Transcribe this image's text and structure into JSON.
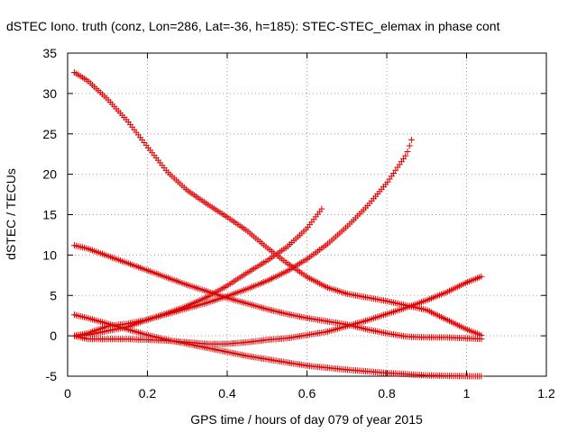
{
  "chart_data": {
    "type": "scatter",
    "title": "dSTEC Iono. truth (conz, Lon=286, Lat=-36, h=185): STEC-STEC_elemax in phase cont",
    "xlabel": "GPS time / hours of day 079 of year 2015",
    "ylabel": "dSTEC  / TECUs",
    "xlim": [
      0,
      1.2
    ],
    "ylim": [
      -5,
      35
    ],
    "x_ticks": [
      "0",
      "0.2",
      "0.4",
      "0.6",
      "0.8",
      "1",
      "1.2"
    ],
    "y_ticks": [
      "-5",
      "0",
      "5",
      "10",
      "15",
      "20",
      "25",
      "30",
      "35"
    ],
    "grid": "dotted",
    "marker": "+",
    "color": "#e00000",
    "series": [
      {
        "points": [
          [
            0.017,
            32.6
          ],
          [
            0.05,
            31.6
          ],
          [
            0.1,
            29.3
          ],
          [
            0.15,
            26.6
          ],
          [
            0.2,
            23.4
          ],
          [
            0.25,
            20.3
          ],
          [
            0.3,
            18.0
          ],
          [
            0.35,
            16.3
          ],
          [
            0.4,
            14.7
          ],
          [
            0.45,
            13.0
          ],
          [
            0.5,
            10.9
          ],
          [
            0.55,
            9.0
          ],
          [
            0.6,
            7.3
          ],
          [
            0.65,
            6.0
          ],
          [
            0.7,
            5.2
          ],
          [
            0.8,
            4.3
          ],
          [
            0.9,
            3.2
          ],
          [
            0.95,
            2.0
          ],
          [
            1.0,
            0.8
          ],
          [
            1.04,
            0.0
          ]
        ]
      },
      {
        "points": [
          [
            0.017,
            11.2
          ],
          [
            0.05,
            10.8
          ],
          [
            0.1,
            9.9
          ],
          [
            0.15,
            9.0
          ],
          [
            0.2,
            8.1
          ],
          [
            0.25,
            7.2
          ],
          [
            0.3,
            6.3
          ],
          [
            0.35,
            5.5
          ],
          [
            0.4,
            4.7
          ],
          [
            0.45,
            4.0
          ],
          [
            0.5,
            3.3
          ],
          [
            0.55,
            2.7
          ],
          [
            0.6,
            2.2
          ],
          [
            0.65,
            1.8
          ],
          [
            0.7,
            1.4
          ],
          [
            0.75,
            0.8
          ],
          [
            0.8,
            0.3
          ],
          [
            0.85,
            -0.1
          ],
          [
            0.9,
            -0.2
          ],
          [
            0.95,
            -0.2
          ],
          [
            1.0,
            -0.3
          ],
          [
            1.04,
            -0.4
          ]
        ]
      },
      {
        "points": [
          [
            0.017,
            2.6
          ],
          [
            0.05,
            2.2
          ],
          [
            0.1,
            1.5
          ],
          [
            0.15,
            0.8
          ],
          [
            0.2,
            0.1
          ],
          [
            0.25,
            -0.5
          ],
          [
            0.3,
            -1.0
          ],
          [
            0.35,
            -1.5
          ],
          [
            0.4,
            -2.0
          ],
          [
            0.45,
            -2.5
          ],
          [
            0.5,
            -2.9
          ],
          [
            0.55,
            -3.3
          ],
          [
            0.6,
            -3.7
          ],
          [
            0.7,
            -4.2
          ],
          [
            0.8,
            -4.6
          ],
          [
            0.9,
            -4.9
          ],
          [
            1.0,
            -5.0
          ],
          [
            1.04,
            -5.0
          ]
        ]
      },
      {
        "points": [
          [
            0.017,
            0.0
          ],
          [
            0.05,
            0.1
          ],
          [
            0.1,
            0.6
          ],
          [
            0.15,
            1.1
          ],
          [
            0.2,
            2.0
          ],
          [
            0.25,
            2.8
          ],
          [
            0.3,
            3.7
          ],
          [
            0.35,
            4.8
          ],
          [
            0.4,
            6.2
          ],
          [
            0.45,
            7.8
          ],
          [
            0.5,
            9.3
          ],
          [
            0.55,
            11.0
          ],
          [
            0.6,
            13.3
          ],
          [
            0.64,
            15.9
          ]
        ]
      },
      {
        "points": [
          [
            0.017,
            0.0
          ],
          [
            0.05,
            0.3
          ],
          [
            0.1,
            1.2
          ],
          [
            0.15,
            1.5
          ],
          [
            0.2,
            2.0
          ],
          [
            0.25,
            2.7
          ],
          [
            0.3,
            3.4
          ],
          [
            0.35,
            4.1
          ],
          [
            0.4,
            4.9
          ],
          [
            0.45,
            5.8
          ],
          [
            0.5,
            6.8
          ],
          [
            0.55,
            8.0
          ],
          [
            0.6,
            9.5
          ],
          [
            0.65,
            11.3
          ],
          [
            0.7,
            13.5
          ],
          [
            0.75,
            16.0
          ],
          [
            0.8,
            18.9
          ],
          [
            0.85,
            22.5
          ],
          [
            0.865,
            24.7
          ]
        ]
      },
      {
        "points": [
          [
            0.017,
            0.0
          ],
          [
            0.05,
            -0.4
          ],
          [
            0.1,
            -0.4
          ],
          [
            0.15,
            -0.4
          ],
          [
            0.2,
            -0.5
          ],
          [
            0.25,
            -0.6
          ],
          [
            0.3,
            -0.8
          ],
          [
            0.35,
            -1.0
          ],
          [
            0.4,
            -1.0
          ],
          [
            0.45,
            -0.8
          ],
          [
            0.5,
            -0.5
          ],
          [
            0.55,
            -0.3
          ],
          [
            0.6,
            0.1
          ],
          [
            0.65,
            0.5
          ],
          [
            0.7,
            1.2
          ],
          [
            0.75,
            1.9
          ],
          [
            0.8,
            2.7
          ],
          [
            0.85,
            3.5
          ],
          [
            0.9,
            4.4
          ],
          [
            0.95,
            5.4
          ],
          [
            1.0,
            6.6
          ],
          [
            1.04,
            7.4
          ]
        ]
      }
    ]
  }
}
